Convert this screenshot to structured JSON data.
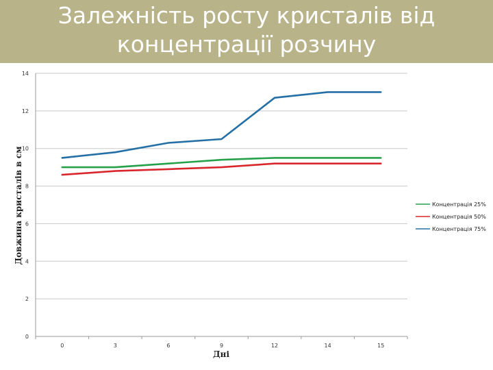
{
  "title": "Залежність росту кристалів від\nконцентрації розчину",
  "colors": {
    "title_band": "#b9b38a",
    "title_text": "#ffffff",
    "grid": "#c8c8c8"
  },
  "chart_data": {
    "type": "line",
    "title": "Залежність росту кристалів від концентрації розчину",
    "xlabel": "Дні",
    "ylabel": "Довжина кристалів в см",
    "categories": [
      "0",
      "3",
      "6",
      "9",
      "12",
      "14",
      "15"
    ],
    "ylim": [
      0,
      14
    ],
    "yticks": [
      0,
      2,
      4,
      6,
      8,
      10,
      12,
      14
    ],
    "grid": true,
    "legend_position": "right",
    "series": [
      {
        "name": "Концентрація 25%",
        "color": "#27a04a",
        "values": [
          9.0,
          9.0,
          9.2,
          9.4,
          9.5,
          9.5,
          9.5
        ]
      },
      {
        "name": "Концентрація 50%",
        "color": "#d9262c",
        "values": [
          8.6,
          8.8,
          8.9,
          9.0,
          9.2,
          9.2,
          9.2
        ]
      },
      {
        "name": "Концентрація 75%",
        "color": "#2470a6",
        "values": [
          9.5,
          9.8,
          10.3,
          10.5,
          12.7,
          13.0,
          13.0
        ]
      }
    ]
  }
}
